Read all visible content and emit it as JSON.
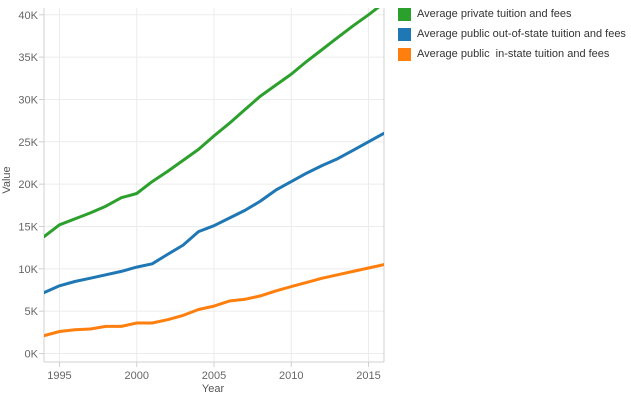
{
  "chart_data": {
    "type": "line",
    "xlabel": "Year",
    "ylabel": "Value",
    "x_ticks": [
      1995,
      2000,
      2005,
      2010,
      2015
    ],
    "y_ticks": [
      0,
      5000,
      10000,
      15000,
      20000,
      25000,
      30000,
      35000,
      40000
    ],
    "y_tick_labels": [
      "0K",
      "5K",
      "10K",
      "15K",
      "20K",
      "25K",
      "30K",
      "35K",
      "40K"
    ],
    "xlim": [
      1994,
      2016
    ],
    "ylim": [
      -1000,
      40800
    ],
    "grid": true,
    "legend_position": "right",
    "x": [
      1994,
      1995,
      1996,
      1997,
      1998,
      1999,
      2000,
      2001,
      2002,
      2003,
      2004,
      2005,
      2006,
      2007,
      2008,
      2009,
      2010,
      2011,
      2012,
      2013,
      2014,
      2015,
      2016
    ],
    "series": [
      {
        "name": "Average private tuition and fees",
        "color": "#2ca02c",
        "values": [
          13800,
          15200,
          15900,
          16600,
          17400,
          18400,
          18900,
          20300,
          21500,
          22800,
          24100,
          25700,
          27200,
          28800,
          30400,
          31700,
          33000,
          34500,
          35900,
          37300,
          38700,
          40000,
          41400
        ]
      },
      {
        "name": "Average public out-of-state tuition and fees",
        "color": "#1f77b4",
        "values": [
          7200,
          8000,
          8500,
          8900,
          9300,
          9700,
          10200,
          10600,
          11700,
          12800,
          14400,
          15100,
          16000,
          16900,
          18000,
          19300,
          20300,
          21300,
          22200,
          23000,
          24000,
          25000,
          26000
        ]
      },
      {
        "name": "Average public  in-state tuition and fees",
        "color": "#ff7f0e",
        "values": [
          2100,
          2600,
          2800,
          2900,
          3200,
          3200,
          3600,
          3600,
          4000,
          4500,
          5200,
          5600,
          6200,
          6400,
          6800,
          7400,
          7900,
          8400,
          8900,
          9300,
          9700,
          10100,
          10500
        ]
      }
    ]
  }
}
